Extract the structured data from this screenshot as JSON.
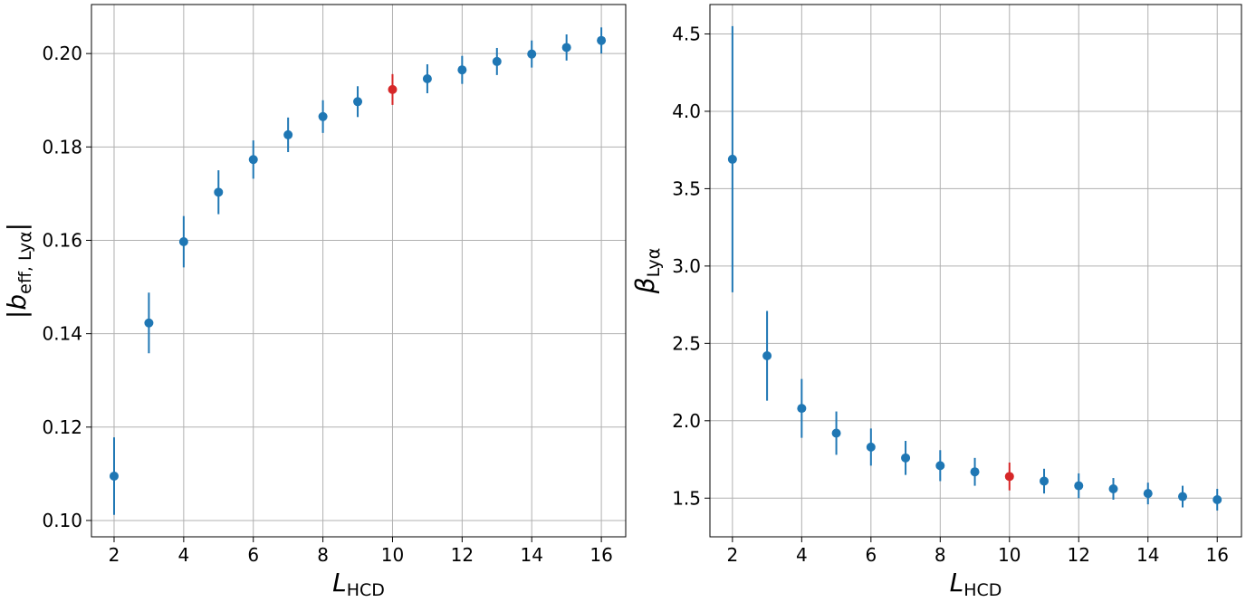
{
  "colors": {
    "default_marker": "#1f77b4",
    "highlight_marker": "#d62728",
    "grid": "#b0b0b0",
    "spine": "#000000"
  },
  "chart_data": [
    {
      "type": "scatter",
      "subtype": "errorbar",
      "xlabel": "L",
      "xlabel_subscript": "HCD",
      "ylabel": "|b",
      "ylabel_subscript": "eff, Lyα",
      "ylabel_suffix": "|",
      "xlim": [
        1.35,
        16.7
      ],
      "ylim": [
        0.0965,
        0.2105
      ],
      "xticks": [
        "2",
        "4",
        "6",
        "8",
        "10",
        "12",
        "14",
        "16"
      ],
      "yticks": [
        "0.10",
        "0.12",
        "0.14",
        "0.16",
        "0.18",
        "0.20"
      ],
      "grid": true,
      "highlight_x": 10,
      "series": [
        {
          "x": [
            2,
            3,
            4,
            5,
            6,
            7,
            8,
            9,
            10,
            11,
            12,
            13,
            14,
            15,
            16
          ],
          "y": [
            0.1095,
            0.1423,
            0.1597,
            0.1703,
            0.1773,
            0.1826,
            0.1865,
            0.1897,
            0.1923,
            0.1946,
            0.1965,
            0.1983,
            0.1999,
            0.2013,
            0.2028
          ],
          "yerr": [
            0.0083,
            0.0065,
            0.0055,
            0.0047,
            0.0041,
            0.0037,
            0.0035,
            0.0033,
            0.0033,
            0.0031,
            0.003,
            0.0029,
            0.0029,
            0.0028,
            0.0028
          ]
        }
      ]
    },
    {
      "type": "scatter",
      "subtype": "errorbar",
      "xlabel": "L",
      "xlabel_subscript": "HCD",
      "ylabel": "β",
      "ylabel_subscript": "Lyα",
      "ylabel_suffix": "",
      "xlim": [
        1.35,
        16.7
      ],
      "ylim": [
        1.25,
        4.69
      ],
      "xticks": [
        "2",
        "4",
        "6",
        "8",
        "10",
        "12",
        "14",
        "16"
      ],
      "yticks": [
        "1.5",
        "2.0",
        "2.5",
        "3.0",
        "3.5",
        "4.0",
        "4.5"
      ],
      "grid": true,
      "highlight_x": 10,
      "series": [
        {
          "x": [
            2,
            3,
            4,
            5,
            6,
            7,
            8,
            9,
            10,
            11,
            12,
            13,
            14,
            15,
            16
          ],
          "y": [
            3.69,
            2.42,
            2.08,
            1.92,
            1.83,
            1.76,
            1.71,
            1.67,
            1.64,
            1.61,
            1.58,
            1.56,
            1.53,
            1.51,
            1.49
          ],
          "yerr": [
            0.86,
            0.29,
            0.19,
            0.14,
            0.12,
            0.11,
            0.1,
            0.09,
            0.09,
            0.08,
            0.08,
            0.07,
            0.07,
            0.07,
            0.07
          ]
        }
      ]
    }
  ]
}
